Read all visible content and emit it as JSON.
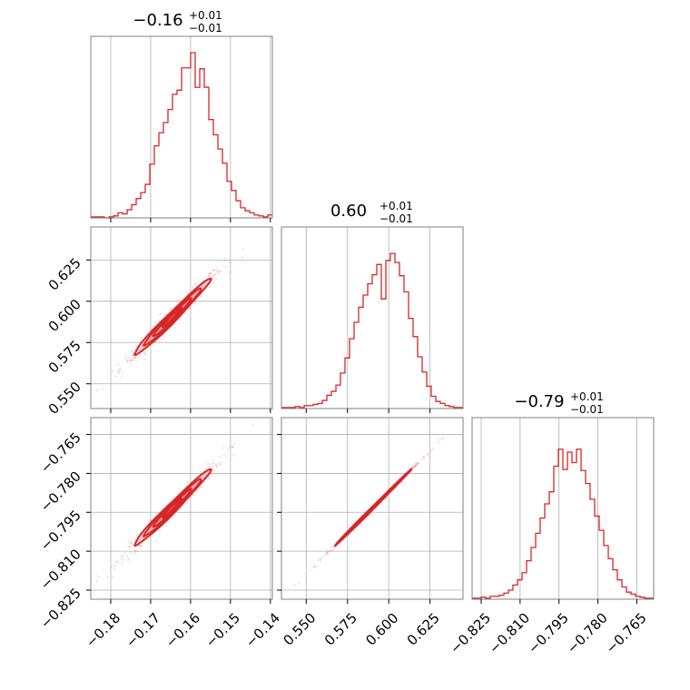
{
  "chart_data": {
    "type": "corner",
    "color": "#d62728",
    "grid": true,
    "parameters": [
      {
        "title": {
          "value": "−0.16",
          "plus": "+0.01",
          "minus": "−0.01"
        },
        "range": [
          -0.185,
          -0.1395
        ],
        "ticks": [
          -0.18,
          -0.17,
          -0.16,
          -0.15,
          -0.14
        ],
        "tick_labels": [
          "−0.18",
          "−0.17",
          "−0.16",
          "−0.15",
          "−0.14"
        ],
        "hist_density": [
          0.006,
          0.006,
          0.006,
          0.0,
          0.006,
          0.012,
          0.031,
          0.024,
          0.049,
          0.08,
          0.117,
          0.153,
          0.203,
          0.325,
          0.436,
          0.515,
          0.577,
          0.656,
          0.748,
          0.773,
          0.908,
          0.908,
          1.0,
          0.79,
          0.902,
          0.791,
          0.595,
          0.503,
          0.417,
          0.331,
          0.221,
          0.166,
          0.104,
          0.061,
          0.043,
          0.031,
          0.018,
          0.012,
          0.006,
          0.018
        ]
      },
      {
        "title": {
          "value": "0.60",
          "plus": "+0.01",
          "minus": "−0.01"
        },
        "range": [
          0.535,
          0.645
        ],
        "ticks": [
          0.55,
          0.575,
          0.6,
          0.625
        ],
        "tick_labels": [
          "0.550",
          "0.575",
          "0.600",
          "0.625"
        ],
        "hist_density": [
          0.006,
          0.006,
          0.006,
          0.012,
          0.006,
          0.018,
          0.018,
          0.025,
          0.031,
          0.049,
          0.08,
          0.104,
          0.142,
          0.215,
          0.306,
          0.423,
          0.522,
          0.613,
          0.687,
          0.755,
          0.81,
          0.872,
          0.663,
          0.896,
          0.939,
          0.884,
          0.804,
          0.706,
          0.546,
          0.435,
          0.313,
          0.221,
          0.135,
          0.074,
          0.043,
          0.031,
          0.018,
          0.012,
          0.006,
          0.006
        ]
      },
      {
        "title": {
          "value": "−0.79",
          "plus": "+0.01",
          "minus": "−0.01"
        },
        "range": [
          -0.8285,
          -0.7585
        ],
        "ticks": [
          -0.825,
          -0.81,
          -0.795,
          -0.78,
          -0.765
        ],
        "tick_labels": [
          "−0.825",
          "−0.810",
          "−0.795",
          "−0.780",
          "−0.765"
        ],
        "hist_density": [
          0.006,
          0.006,
          0.012,
          0.006,
          0.018,
          0.018,
          0.024,
          0.037,
          0.055,
          0.086,
          0.117,
          0.16,
          0.233,
          0.313,
          0.399,
          0.491,
          0.577,
          0.65,
          0.805,
          0.908,
          0.785,
          0.89,
          0.827,
          0.908,
          0.779,
          0.7,
          0.605,
          0.503,
          0.417,
          0.325,
          0.245,
          0.178,
          0.117,
          0.074,
          0.043,
          0.031,
          0.018,
          0.012,
          0.006,
          0.006
        ]
      }
    ],
    "correlations": {
      "1_0": 0.985,
      "2_0": 0.985,
      "2_1": 0.999
    }
  }
}
